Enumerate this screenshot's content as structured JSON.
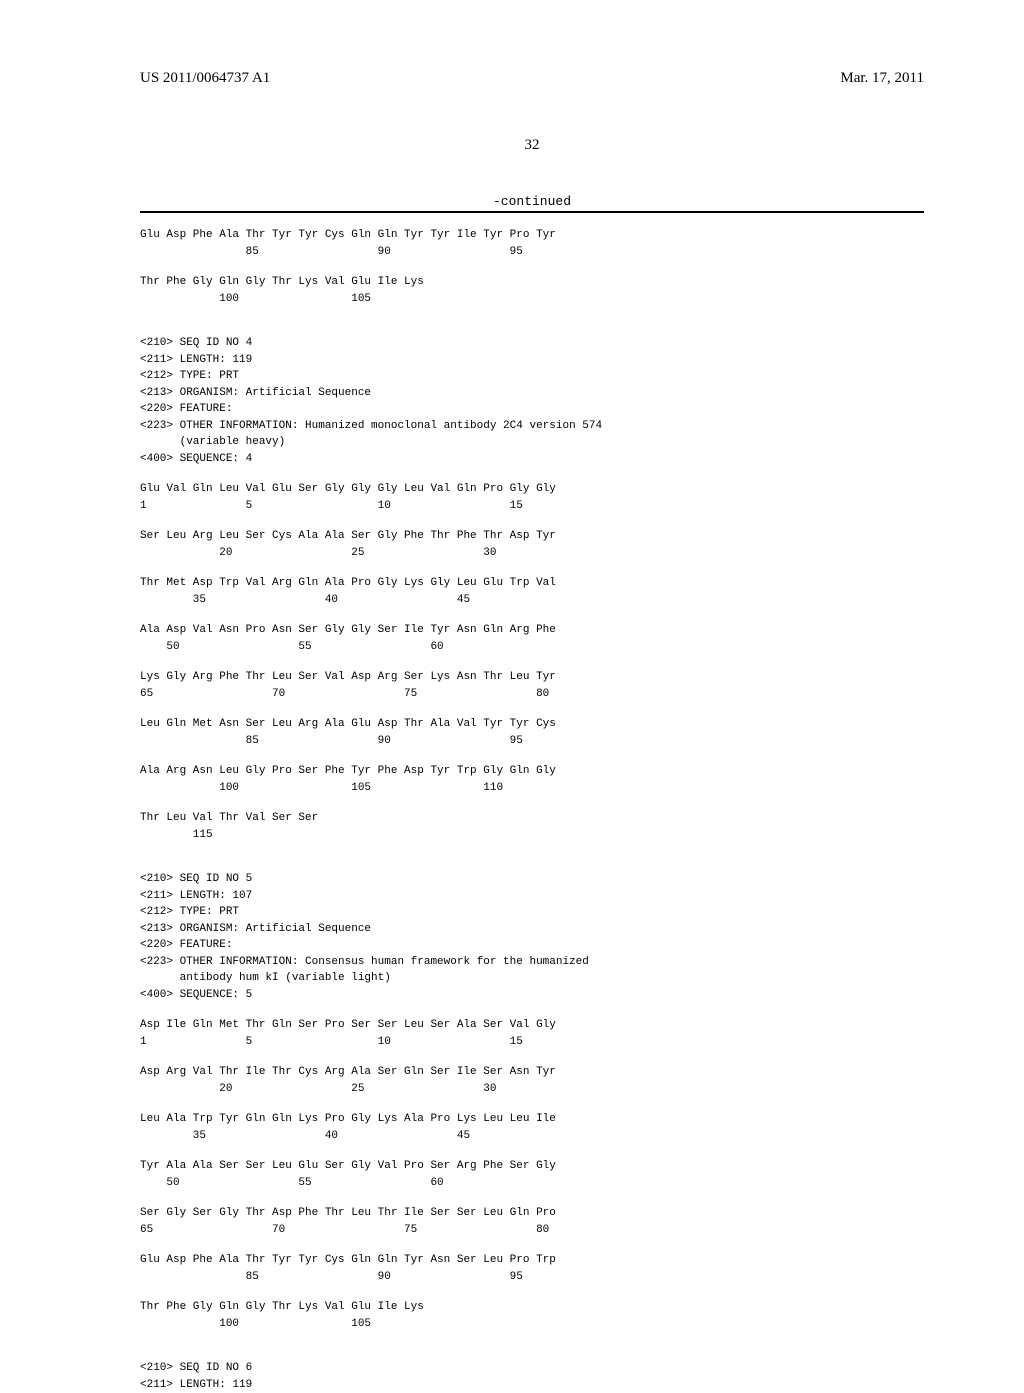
{
  "header": {
    "pub_number": "US 2011/0064737 A1",
    "pub_date": "Mar. 17, 2011"
  },
  "page_number": "32",
  "continued_label": "-continued",
  "seq_prev_tail": [
    {
      "aa": "Glu Asp Phe Ala Thr Tyr Tyr Cys Gln Gln Tyr Tyr Ile Tyr Pro Tyr",
      "num": "                85                  90                  95"
    },
    {
      "aa": "Thr Phe Gly Gln Gly Thr Lys Val Glu Ile Lys",
      "num": "            100                 105"
    }
  ],
  "seq4_meta": [
    "<210> SEQ ID NO 4",
    "<211> LENGTH: 119",
    "<212> TYPE: PRT",
    "<213> ORGANISM: Artificial Sequence",
    "<220> FEATURE:",
    "<223> OTHER INFORMATION: Humanized monoclonal antibody 2C4 version 574",
    "      (variable heavy)",
    "",
    "<400> SEQUENCE: 4"
  ],
  "seq4_rows": [
    {
      "aa": "Glu Val Gln Leu Val Glu Ser Gly Gly Gly Leu Val Gln Pro Gly Gly",
      "num": "1               5                   10                  15"
    },
    {
      "aa": "Ser Leu Arg Leu Ser Cys Ala Ala Ser Gly Phe Thr Phe Thr Asp Tyr",
      "num": "            20                  25                  30"
    },
    {
      "aa": "Thr Met Asp Trp Val Arg Gln Ala Pro Gly Lys Gly Leu Glu Trp Val",
      "num": "        35                  40                  45"
    },
    {
      "aa": "Ala Asp Val Asn Pro Asn Ser Gly Gly Ser Ile Tyr Asn Gln Arg Phe",
      "num": "    50                  55                  60"
    },
    {
      "aa": "Lys Gly Arg Phe Thr Leu Ser Val Asp Arg Ser Lys Asn Thr Leu Tyr",
      "num": "65                  70                  75                  80"
    },
    {
      "aa": "Leu Gln Met Asn Ser Leu Arg Ala Glu Asp Thr Ala Val Tyr Tyr Cys",
      "num": "                85                  90                  95"
    },
    {
      "aa": "Ala Arg Asn Leu Gly Pro Ser Phe Tyr Phe Asp Tyr Trp Gly Gln Gly",
      "num": "            100                 105                 110"
    },
    {
      "aa": "Thr Leu Val Thr Val Ser Ser",
      "num": "        115"
    }
  ],
  "seq5_meta": [
    "<210> SEQ ID NO 5",
    "<211> LENGTH: 107",
    "<212> TYPE: PRT",
    "<213> ORGANISM: Artificial Sequence",
    "<220> FEATURE:",
    "<223> OTHER INFORMATION: Consensus human framework for the humanized",
    "      antibody hum kI (variable light)",
    "",
    "<400> SEQUENCE: 5"
  ],
  "seq5_rows": [
    {
      "aa": "Asp Ile Gln Met Thr Gln Ser Pro Ser Ser Leu Ser Ala Ser Val Gly",
      "num": "1               5                   10                  15"
    },
    {
      "aa": "Asp Arg Val Thr Ile Thr Cys Arg Ala Ser Gln Ser Ile Ser Asn Tyr",
      "num": "            20                  25                  30"
    },
    {
      "aa": "Leu Ala Trp Tyr Gln Gln Lys Pro Gly Lys Ala Pro Lys Leu Leu Ile",
      "num": "        35                  40                  45"
    },
    {
      "aa": "Tyr Ala Ala Ser Ser Leu Glu Ser Gly Val Pro Ser Arg Phe Ser Gly",
      "num": "    50                  55                  60"
    },
    {
      "aa": "Ser Gly Ser Gly Thr Asp Phe Thr Leu Thr Ile Ser Ser Leu Gln Pro",
      "num": "65                  70                  75                  80"
    },
    {
      "aa": "Glu Asp Phe Ala Thr Tyr Tyr Cys Gln Gln Tyr Asn Ser Leu Pro Trp",
      "num": "                85                  90                  95"
    },
    {
      "aa": "Thr Phe Gly Gln Gly Thr Lys Val Glu Ile Lys",
      "num": "            100                 105"
    }
  ],
  "seq6_meta": [
    "<210> SEQ ID NO 6",
    "<211> LENGTH: 119"
  ]
}
